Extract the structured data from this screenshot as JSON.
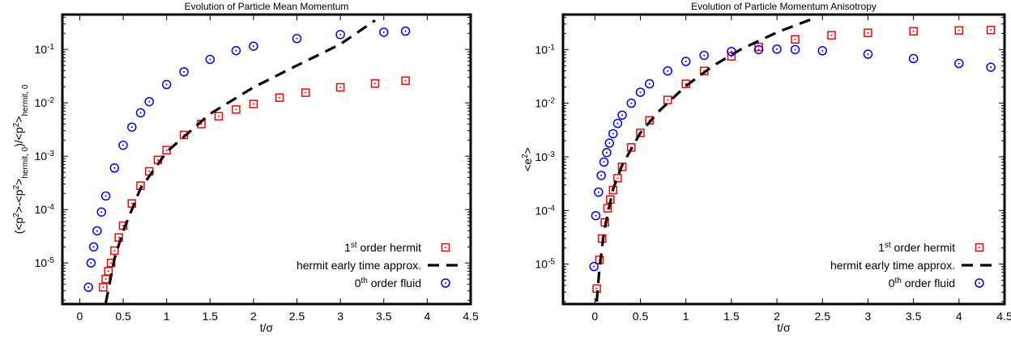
{
  "chart_data": [
    {
      "type": "scatter",
      "title": "Evolution of Particle Mean Momentum",
      "xlabel": "t/σ",
      "ylabel": "(<p²>-<p²>hermit, 0)/<p²>hermit, 0",
      "ylabel_parts": [
        "(<p",
        "2",
        ">-<p",
        "2",
        ">",
        "hermit, 0",
        ")/<p",
        "2",
        ">",
        "hermit, 0"
      ],
      "xlim": [
        -0.2,
        4.5
      ],
      "ylim": [
        1.7e-06,
        0.45
      ],
      "yscale": "log",
      "grid": false,
      "legend_position": "bottom-right",
      "xticks": [
        0,
        0.5,
        1,
        1.5,
        2,
        2.5,
        3,
        3.5,
        4,
        4.5
      ],
      "xtick_labels": [
        "0",
        "0.5",
        "1",
        "1.5",
        "2",
        "2.5",
        "3",
        "3.5",
        "4",
        "4.5"
      ],
      "yticks": [
        1e-05,
        0.0001,
        0.001,
        0.01,
        0.1
      ],
      "ytick_labels": [
        [
          "10",
          "-5"
        ],
        [
          "10",
          "-4"
        ],
        [
          "10",
          "-3"
        ],
        [
          "10",
          "-2"
        ],
        [
          "10",
          "-1"
        ]
      ],
      "series": [
        {
          "name": "1st order hermit",
          "legend_parts": [
            "1",
            "st",
            " order hermit"
          ],
          "marker": "square-dot",
          "color": "#ff0000",
          "x": [
            0.27,
            0.3,
            0.33,
            0.36,
            0.4,
            0.45,
            0.5,
            0.6,
            0.7,
            0.8,
            0.9,
            1.0,
            1.2,
            1.4,
            1.6,
            1.8,
            2.0,
            2.3,
            2.6,
            3.0,
            3.4,
            3.75
          ],
          "y": [
            3.5e-06,
            5e-06,
            7e-06,
            1e-05,
            1.7e-05,
            3e-05,
            5e-05,
            0.00013,
            0.00028,
            0.00052,
            0.00085,
            0.0013,
            0.0025,
            0.004,
            0.0056,
            0.0075,
            0.0095,
            0.0125,
            0.0155,
            0.0195,
            0.023,
            0.026
          ]
        },
        {
          "name": "hermit early time approx.",
          "legend_parts": [
            "hermit early time approx."
          ],
          "line": "dashed",
          "color": "#000000",
          "x": [
            0.3,
            0.4,
            0.5,
            0.7,
            1.0,
            1.5,
            2.0,
            2.5,
            3.0,
            3.4
          ],
          "y": [
            1.8e-06,
            1.2e-05,
            4e-05,
            0.00025,
            0.0012,
            0.0062,
            0.0195,
            0.05,
            0.125,
            0.35
          ]
        },
        {
          "name": "0th order fluid",
          "legend_parts": [
            "0",
            "th",
            " order fluid"
          ],
          "marker": "circle-dot",
          "color": "#0000ff",
          "x": [
            0.1,
            0.13,
            0.16,
            0.2,
            0.25,
            0.3,
            0.4,
            0.5,
            0.6,
            0.7,
            0.8,
            1.0,
            1.2,
            1.5,
            1.8,
            2.0,
            2.5,
            3.0,
            3.5,
            3.75
          ],
          "y": [
            3.5e-06,
            1e-05,
            2e-05,
            4e-05,
            9e-05,
            0.00018,
            0.0006,
            0.0016,
            0.0035,
            0.0065,
            0.0105,
            0.022,
            0.038,
            0.065,
            0.095,
            0.115,
            0.16,
            0.19,
            0.21,
            0.22
          ]
        }
      ]
    },
    {
      "type": "scatter",
      "title": "Evolution of Particle Momentum Anisotropy",
      "xlabel": "t/σ",
      "ylabel": "<e2>",
      "ylabel_parts": [
        "<e",
        "2",
        ">"
      ],
      "xlim": [
        -0.35,
        4.5
      ],
      "ylim": [
        1.8e-06,
        0.45
      ],
      "yscale": "log",
      "grid": false,
      "legend_position": "bottom-right",
      "xticks": [
        0,
        0.5,
        1,
        1.5,
        2,
        2.5,
        3,
        3.5,
        4,
        4.5
      ],
      "xtick_labels": [
        "0",
        "0.5",
        "1",
        "1.5",
        "2",
        "2.5",
        "3",
        "3.5",
        "4",
        "4.5"
      ],
      "yticks": [
        1e-05,
        0.0001,
        0.001,
        0.01,
        0.1
      ],
      "ytick_labels": [
        [
          "10",
          "-5"
        ],
        [
          "10",
          "-4"
        ],
        [
          "10",
          "-3"
        ],
        [
          "10",
          "-2"
        ],
        [
          "10",
          "-1"
        ]
      ],
      "series": [
        {
          "name": "1st order hermit",
          "legend_parts": [
            "1",
            "st",
            " order hermit"
          ],
          "marker": "square-dot",
          "color": "#ff0000",
          "x": [
            0.02,
            0.05,
            0.08,
            0.11,
            0.14,
            0.17,
            0.2,
            0.25,
            0.3,
            0.4,
            0.5,
            0.6,
            0.8,
            1.0,
            1.2,
            1.5,
            1.8,
            2.2,
            2.6,
            3.0,
            3.5,
            4.0,
            4.35
          ],
          "y": [
            3.5e-06,
            1.2e-05,
            3e-05,
            6e-05,
            0.00011,
            0.00016,
            0.00024,
            0.0004,
            0.00065,
            0.0015,
            0.0028,
            0.0048,
            0.0115,
            0.023,
            0.04,
            0.075,
            0.112,
            0.155,
            0.185,
            0.205,
            0.22,
            0.228,
            0.232
          ]
        },
        {
          "name": "hermit early time approx.",
          "legend_parts": [
            "hermit early time approx."
          ],
          "line": "dashed",
          "color": "#000000",
          "x": [
            0.02,
            0.05,
            0.1,
            0.2,
            0.3,
            0.5,
            0.7,
            1.0,
            1.3,
            1.6,
            2.0,
            2.4
          ],
          "y": [
            2e-06,
            8e-06,
            4e-05,
            0.00025,
            0.0007,
            0.0028,
            0.007,
            0.021,
            0.05,
            0.1,
            0.21,
            0.38
          ]
        },
        {
          "name": "0th order fluid",
          "legend_parts": [
            "0",
            "th",
            " order fluid"
          ],
          "marker": "circle-dot",
          "color": "#0000ff",
          "x": [
            -0.01,
            0.01,
            0.04,
            0.07,
            0.1,
            0.13,
            0.16,
            0.2,
            0.25,
            0.3,
            0.4,
            0.5,
            0.6,
            0.8,
            1.0,
            1.2,
            1.5,
            1.8,
            2.0,
            2.2,
            2.5,
            3.0,
            3.5,
            4.0,
            4.35
          ],
          "y": [
            9e-06,
            8e-05,
            0.00022,
            0.00045,
            0.0008,
            0.0012,
            0.0018,
            0.0027,
            0.0042,
            0.006,
            0.01,
            0.016,
            0.023,
            0.04,
            0.06,
            0.078,
            0.092,
            0.1,
            0.102,
            0.1,
            0.095,
            0.082,
            0.068,
            0.055,
            0.047
          ]
        }
      ]
    }
  ]
}
